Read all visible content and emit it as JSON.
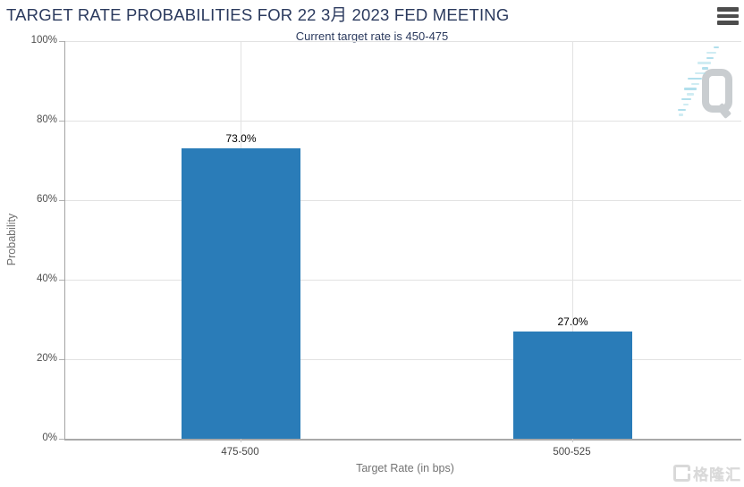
{
  "chart_data": {
    "type": "bar",
    "title": "TARGET RATE PROBABILITIES FOR 22 3月 2023 FED MEETING",
    "subtitle": "Current target rate is 450-475",
    "xlabel": "Target Rate (in bps)",
    "ylabel": "Probability",
    "categories": [
      "475-500",
      "500-525"
    ],
    "values": [
      73.0,
      27.0
    ],
    "value_labels": [
      "73.0%",
      "27.0%"
    ],
    "ylim": [
      0,
      100
    ],
    "ytick_interval": 20,
    "ytick_labels": [
      "0%",
      "20%",
      "40%",
      "60%",
      "80%",
      "100%"
    ],
    "grid": true,
    "legend": "none",
    "bar_color": "#2a7cb8"
  },
  "menu": {
    "icon": "hamburger-icon"
  },
  "watermarks": {
    "quikstrike_letter": "Q",
    "gelonghui_text": "格隆汇"
  },
  "colors": {
    "title_navy": "#2b3a5e",
    "bar_blue": "#2a7cb8",
    "axis_line": "#a3a3a3",
    "grid_line": "#e2e2e2",
    "tick_label": "#4f4f4f",
    "axis_title": "#737373",
    "value_label": "#000000",
    "watermark_gray": "#c9cdd0",
    "watermark_blue": "#a8dcea",
    "menu_icon": "#4d4d4d"
  }
}
